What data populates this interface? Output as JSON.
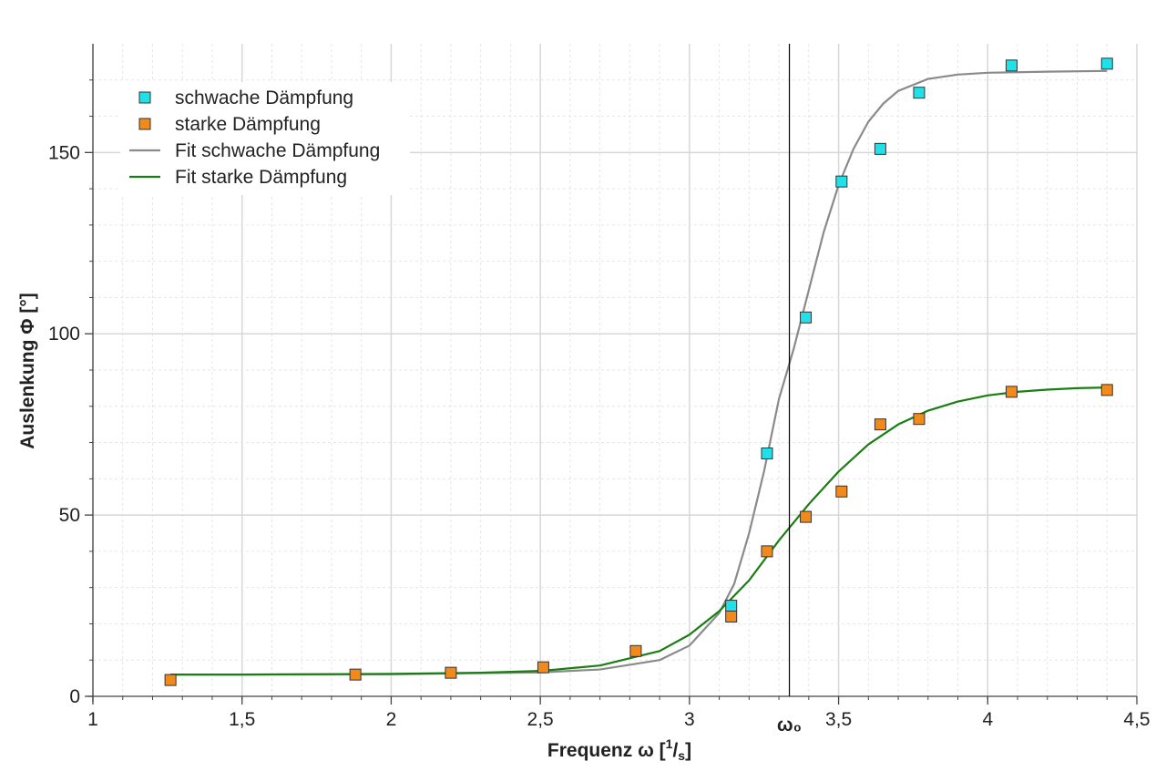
{
  "chart_data": {
    "type": "scatter",
    "xlabel": "Frequenz ω [1/s]",
    "xlabel_main": "Frequenz ω [",
    "xlabel_sup": "1",
    "xlabel_sep": "/",
    "xlabel_sub": "s",
    "xlabel_close": "]",
    "ylabel": "Auslenkung Φ [°]",
    "xlim": [
      1,
      4.5
    ],
    "ylim": [
      0,
      180
    ],
    "x_ticks": [
      1,
      1.5,
      2,
      2.5,
      3,
      3.5,
      4,
      4.5
    ],
    "x_tick_labels": [
      "1",
      "1,5",
      "2",
      "2,5",
      "3",
      "3,5",
      "4",
      "4,5"
    ],
    "y_ticks": [
      0,
      50,
      100,
      150
    ],
    "y_tick_labels": [
      "0",
      "50",
      "100",
      "150"
    ],
    "grid": true,
    "legend_position": "top-left",
    "annotation": {
      "label": "ω₀",
      "x": 3.335
    },
    "series": [
      {
        "name": "schwache Dämpfung",
        "kind": "marker",
        "color": "#22e0e8",
        "x": [
          3.14,
          3.26,
          3.39,
          3.51,
          3.64,
          3.77,
          4.08,
          4.4
        ],
        "y": [
          25.0,
          67.0,
          104.5,
          142.0,
          151.0,
          166.5,
          174.0,
          174.5
        ]
      },
      {
        "name": "starke Dämpfung",
        "kind": "marker",
        "color": "#f28a1b",
        "x": [
          1.26,
          1.88,
          2.2,
          2.51,
          2.82,
          3.14,
          3.26,
          3.39,
          3.51,
          3.64,
          3.77,
          4.08,
          4.4
        ],
        "y": [
          4.5,
          6.0,
          6.5,
          8.0,
          12.5,
          22.0,
          40.0,
          49.5,
          56.5,
          75.0,
          76.5,
          84.0,
          84.5
        ]
      },
      {
        "name": "Fit schwache Dämpfung",
        "kind": "line",
        "color": "#8a8a8a",
        "x": [
          1.26,
          1.5,
          2.0,
          2.5,
          2.7,
          2.9,
          3.0,
          3.1,
          3.15,
          3.2,
          3.25,
          3.3,
          3.35,
          3.4,
          3.45,
          3.5,
          3.55,
          3.6,
          3.65,
          3.7,
          3.8,
          3.9,
          4.0,
          4.2,
          4.4
        ],
        "y": [
          6.0,
          6.0,
          6.1,
          6.6,
          7.4,
          10.0,
          14.0,
          23.0,
          31.0,
          45.0,
          62.0,
          82.0,
          96.0,
          112.0,
          128.0,
          141.0,
          151.0,
          158.5,
          163.5,
          167.0,
          170.3,
          171.5,
          172.0,
          172.3,
          172.5
        ]
      },
      {
        "name": "Fit starke Dämpfung",
        "kind": "line",
        "color": "#1a7f12",
        "x": [
          1.26,
          1.5,
          2.0,
          2.3,
          2.5,
          2.7,
          2.9,
          3.0,
          3.1,
          3.2,
          3.3,
          3.4,
          3.5,
          3.6,
          3.7,
          3.8,
          3.9,
          4.0,
          4.1,
          4.2,
          4.3,
          4.4
        ],
        "y": [
          6.0,
          6.0,
          6.2,
          6.5,
          7.0,
          8.5,
          12.5,
          17.0,
          23.5,
          32.0,
          43.0,
          53.0,
          62.0,
          69.5,
          75.0,
          78.8,
          81.3,
          83.0,
          84.0,
          84.6,
          85.0,
          85.2
        ]
      }
    ]
  }
}
